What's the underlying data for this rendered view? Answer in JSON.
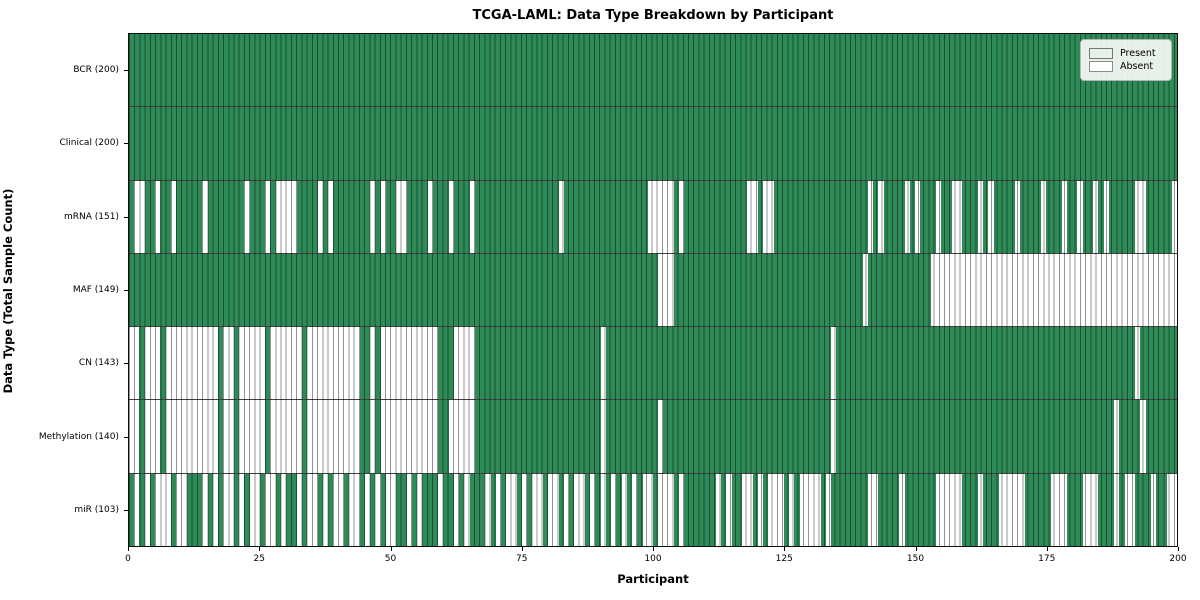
{
  "title": "TCGA-LAML: Data Type Breakdown by Participant",
  "xlabel": "Participant",
  "ylabel": "Data Type (Total Sample Count)",
  "legend": {
    "present_label": "Present",
    "absent_label": "Absent"
  },
  "colors": {
    "present": "#2e8b57",
    "absent": "#ffffff",
    "plot_border": "#0d0d0d"
  },
  "chart_data": {
    "type": "heatmap",
    "title": "TCGA-LAML: Data Type Breakdown by Participant",
    "xlabel": "Participant",
    "ylabel": "Data Type (Total Sample Count)",
    "x_range": [
      0,
      200
    ],
    "x_ticks": [
      0,
      25,
      50,
      75,
      100,
      125,
      150,
      175,
      200
    ],
    "n_participants": 200,
    "grid": "per-cell vertical gridlines, horizontal row separators",
    "legend_position": "upper right",
    "legend_entries": [
      "Present",
      "Absent"
    ],
    "value_encoding": {
      "1": "Present",
      "0": "Absent"
    },
    "rows": [
      {
        "label": "BCR (200)",
        "data_type": "BCR",
        "present_count": 200,
        "presence": "11111111111111111111111111111111111111111111111111111111111111111111111111111111111111111111111111111111111111111111111111111111111111111111111111111111111111111111111111111111111111111111111111111111"
      },
      {
        "label": "Clinical (200)",
        "data_type": "Clinical",
        "present_count": 200,
        "presence": "11111111111111111111111111111111111111111111111111111111111111111111111111111111111111111111111111111111111111111111111111111111111111111111111111111111111111111111111111111111111111111111111111111111"
      },
      {
        "label": "mRNA (151)",
        "data_type": "mRNA",
        "present_count": 151,
        "presence": "10011011011111011111110111010000111101011111110101100111101110111011111111111111110111111111111111100000101111111111110010011111111111111111101011110101110110011101011110111101110110110101111100111 11"
      },
      {
        "label": "MAF (149)",
        "data_type": "MAF",
        "present_count": 149,
        "presence": "11111111111111111111111111111111111111111111111111111111111111111111111111111111111111111111111111111000111111111111111111111111111111111111011111111111100000000000000000000000000000000000000000000000"
      },
      {
        "label": "CN (143)",
        "data_type": "CN",
        "present_count": 143,
        "presence": "00100010000000000100100000100000010000000000110100000000000111000011111111111111111111111101111111111111111111111111111111111111111111011111111111111111111111111111111111111111111111111111111101111111 11"
      },
      {
        "label": "Methylation (140)",
        "data_type": "Methylation",
        "present_count": 140,
        "presence": "00100010000000000100100000100000010000000000110100000000000110000011111111111111111111111101111111111011111111111111111111111111111111011111111111111111111111111111111111111111111111111111011110111111 11"
      },
      {
        "label": "miR (103)",
        "data_type": "miR",
        "present_count": 103,
        "presence": "10101000100111010100101001001011010010100100101010011010111011010111010100101001001010010101010101001000101111110101100101000101000010111111100111101111110000011101110000011111000111000111010011101100"
      }
    ]
  }
}
